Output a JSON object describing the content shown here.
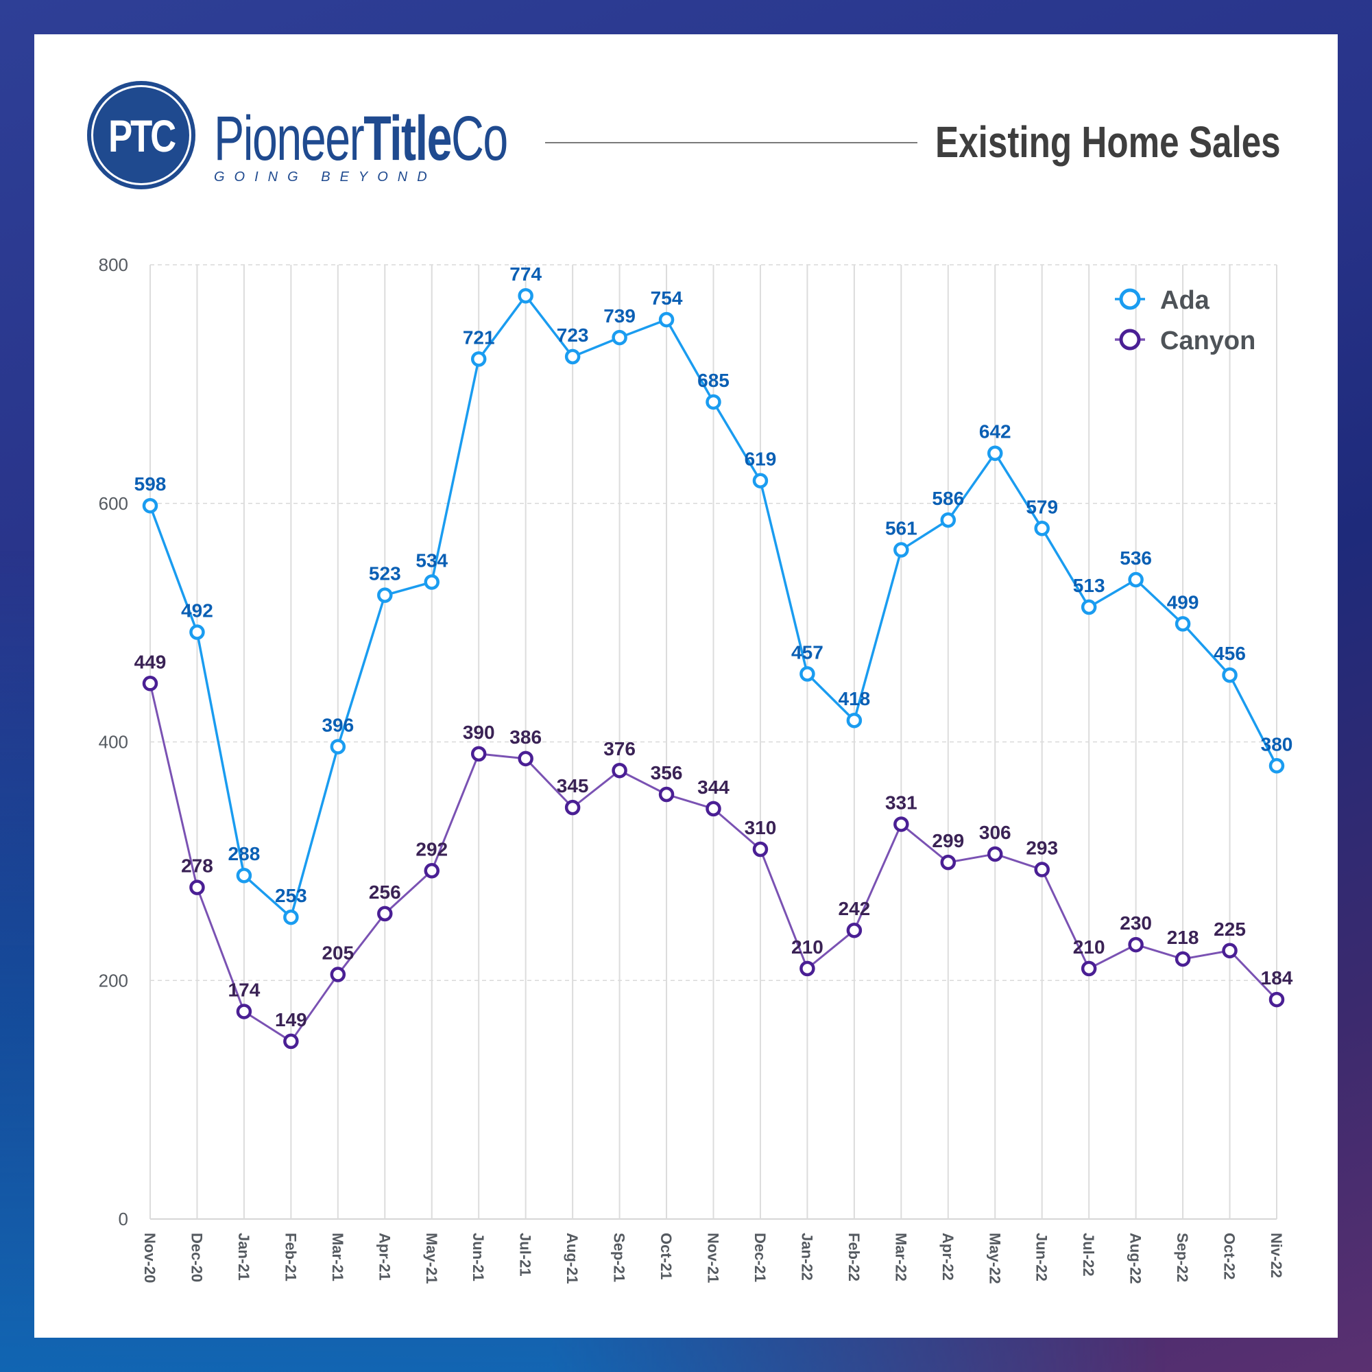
{
  "header": {
    "logo_initials": "PTC",
    "brand_light": "Pioneer",
    "brand_bold": "Title",
    "brand_suffix": "Co",
    "tagline": "GOING BEYOND",
    "title": "Existing Home Sales"
  },
  "colors": {
    "brand": "#1f4a8f",
    "ada_line": "#1a9cf0",
    "ada_label": "#0a5fb4",
    "canyon_line": "#7a52b3",
    "canyon_marker": "#4a1f94",
    "canyon_label": "#3a2255"
  },
  "chart_data": {
    "type": "line",
    "title": "Existing Home Sales",
    "xlabel": "",
    "ylabel": "",
    "ylim": [
      0,
      800
    ],
    "yticks": [
      0,
      200,
      400,
      600,
      800
    ],
    "grid": true,
    "legend_position": "top-right",
    "categories": [
      "Nov-20",
      "Dec-20",
      "Jan-21",
      "Feb-21",
      "Mar-21",
      "Apr-21",
      "May-21",
      "Jun-21",
      "Jul-21",
      "Aug-21",
      "Sep-21",
      "Oct-21",
      "Nov-21",
      "Dec-21",
      "Jan-22",
      "Feb-22",
      "Mar-22",
      "Apr-22",
      "May-22",
      "Jun-22",
      "Jul-22",
      "Aug-22",
      "Sep-22",
      "Oct-22",
      "Niv-22"
    ],
    "series": [
      {
        "name": "Ada",
        "values": [
          598,
          492,
          288,
          253,
          396,
          523,
          534,
          721,
          774,
          723,
          739,
          754,
          685,
          619,
          457,
          418,
          561,
          586,
          642,
          579,
          513,
          536,
          499,
          456,
          380
        ]
      },
      {
        "name": "Canyon",
        "values": [
          449,
          278,
          174,
          149,
          205,
          256,
          292,
          390,
          386,
          345,
          376,
          356,
          344,
          310,
          210,
          242,
          331,
          299,
          306,
          293,
          210,
          230,
          218,
          225,
          184
        ]
      }
    ]
  }
}
